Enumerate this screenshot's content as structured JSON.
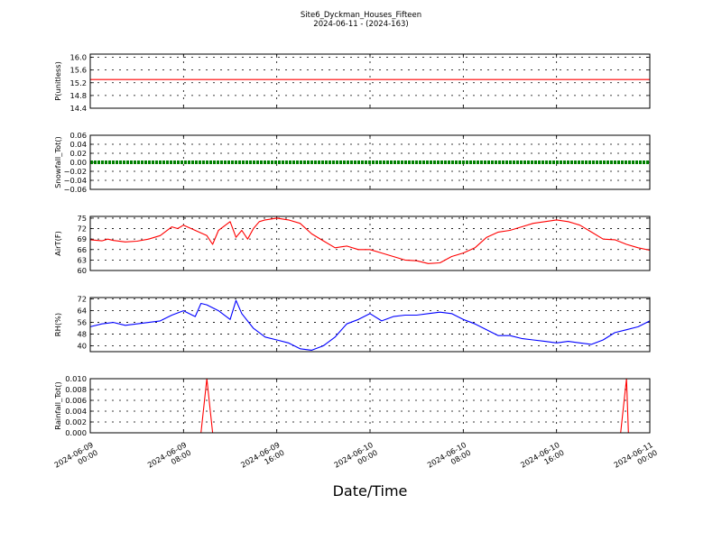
{
  "title": {
    "line1": "Site6_Dyckman_Houses_Fifteen",
    "line2": "2024-06-11 - (2024-163)"
  },
  "x_axis": {
    "label": "Date/Time",
    "ticks": [
      {
        "line1": "2024-06-09",
        "line2": "00:00"
      },
      {
        "line1": "2024-06-09",
        "line2": "08:00"
      },
      {
        "line1": "2024-06-09",
        "line2": "16:00"
      },
      {
        "line1": "2024-06-10",
        "line2": "00:00"
      },
      {
        "line1": "2024-06-10",
        "line2": "08:00"
      },
      {
        "line1": "2024-06-10",
        "line2": "16:00"
      },
      {
        "line1": "2024-06-11",
        "line2": "00:00"
      }
    ]
  },
  "chart_data": [
    {
      "type": "line",
      "ylabel": "P(unitless)",
      "color": "#ff0000",
      "ylim": [
        14.4,
        16.1
      ],
      "yticks": [
        "14.4",
        "14.8",
        "15.2",
        "15.6",
        "16.0"
      ],
      "grid": true,
      "x_range": [
        "2024-06-09 00:00",
        "2024-06-11 00:00"
      ],
      "series": [
        {
          "x": [
            "2024-06-09 00:00",
            "2024-06-11 00:00"
          ],
          "values": [
            15.3,
            15.3
          ]
        }
      ]
    },
    {
      "type": "scatter",
      "ylabel": "Snowfall_Tot()",
      "color": "#008000",
      "ylim": [
        -0.06,
        0.06
      ],
      "yticks": [
        "−0.06",
        "−0.04",
        "−0.02",
        "0.00",
        "0.02",
        "0.04",
        "0.06"
      ],
      "grid": true,
      "x_range": [
        "2024-06-09 00:00",
        "2024-06-11 00:00"
      ],
      "series": [
        {
          "description_of_values": "constant",
          "x": [
            "2024-06-09 00:00",
            "2024-06-11 00:00"
          ],
          "values": [
            0.0,
            0.0
          ]
        }
      ]
    },
    {
      "type": "line",
      "ylabel": "AirT(F)",
      "color": "#ff0000",
      "ylim": [
        60,
        75.5
      ],
      "yticks": [
        "60",
        "63",
        "66",
        "69",
        "72",
        "75"
      ],
      "grid": true,
      "x_range": [
        "2024-06-09 00:00",
        "2024-06-11 00:00"
      ],
      "series": [
        {
          "x": [
            "2024-06-09 00:00",
            "2024-06-09 01:00",
            "2024-06-09 01:30",
            "2024-06-09 02:00",
            "2024-06-09 03:00",
            "2024-06-09 04:00",
            "2024-06-09 05:00",
            "2024-06-09 06:00",
            "2024-06-09 07:00",
            "2024-06-09 07:30",
            "2024-06-09 08:00",
            "2024-06-09 09:00",
            "2024-06-09 10:00",
            "2024-06-09 10:30",
            "2024-06-09 11:00",
            "2024-06-09 12:00",
            "2024-06-09 12:30",
            "2024-06-09 13:00",
            "2024-06-09 13:30",
            "2024-06-09 14:00",
            "2024-06-09 14:30",
            "2024-06-09 15:00",
            "2024-06-09 16:00",
            "2024-06-09 17:00",
            "2024-06-09 18:00",
            "2024-06-09 19:00",
            "2024-06-09 20:00",
            "2024-06-09 21:00",
            "2024-06-09 22:00",
            "2024-06-09 23:00",
            "2024-06-10 00:00",
            "2024-06-10 01:00",
            "2024-06-10 02:00",
            "2024-06-10 03:00",
            "2024-06-10 04:00",
            "2024-06-10 05:00",
            "2024-06-10 06:00",
            "2024-06-10 07:00",
            "2024-06-10 08:00",
            "2024-06-10 09:00",
            "2024-06-10 10:00",
            "2024-06-10 11:00",
            "2024-06-10 12:00",
            "2024-06-10 13:00",
            "2024-06-10 14:00",
            "2024-06-10 15:00",
            "2024-06-10 16:00",
            "2024-06-10 17:00",
            "2024-06-10 18:00",
            "2024-06-10 19:00",
            "2024-06-10 20:00",
            "2024-06-10 21:00",
            "2024-06-10 22:00",
            "2024-06-10 23:00",
            "2024-06-11 00:00"
          ],
          "values": [
            68.8,
            68.5,
            69.0,
            68.6,
            68.2,
            68.4,
            69.0,
            70.0,
            72.5,
            72.0,
            73.0,
            71.5,
            70.0,
            67.5,
            71.5,
            74.0,
            69.5,
            71.5,
            69.0,
            72.0,
            74.0,
            74.5,
            75.0,
            74.5,
            73.5,
            70.5,
            68.5,
            66.5,
            67.0,
            66.0,
            66.0,
            65.0,
            64.0,
            63.0,
            62.8,
            62.0,
            62.2,
            64.0,
            65.0,
            66.5,
            69.5,
            71.0,
            71.5,
            72.5,
            73.5,
            74.0,
            74.5,
            74.0,
            73.0,
            71.0,
            69.0,
            68.8,
            67.5,
            66.5,
            65.8
          ]
        }
      ]
    },
    {
      "type": "line",
      "ylabel": "RH(%)",
      "color": "#0000ff",
      "ylim": [
        36,
        73
      ],
      "yticks": [
        "40",
        "48",
        "56",
        "64",
        "72"
      ],
      "grid": true,
      "x_range": [
        "2024-06-09 00:00",
        "2024-06-11 00:00"
      ],
      "series": [
        {
          "x": [
            "2024-06-09 00:00",
            "2024-06-09 01:00",
            "2024-06-09 02:00",
            "2024-06-09 03:00",
            "2024-06-09 04:00",
            "2024-06-09 05:00",
            "2024-06-09 06:00",
            "2024-06-09 07:00",
            "2024-06-09 08:00",
            "2024-06-09 09:00",
            "2024-06-09 09:30",
            "2024-06-09 10:00",
            "2024-06-09 11:00",
            "2024-06-09 12:00",
            "2024-06-09 12:30",
            "2024-06-09 13:00",
            "2024-06-09 14:00",
            "2024-06-09 15:00",
            "2024-06-09 16:00",
            "2024-06-09 17:00",
            "2024-06-09 18:00",
            "2024-06-09 19:00",
            "2024-06-09 20:00",
            "2024-06-09 21:00",
            "2024-06-09 22:00",
            "2024-06-09 23:00",
            "2024-06-10 00:00",
            "2024-06-10 01:00",
            "2024-06-10 02:00",
            "2024-06-10 03:00",
            "2024-06-10 04:00",
            "2024-06-10 05:00",
            "2024-06-10 06:00",
            "2024-06-10 07:00",
            "2024-06-10 08:00",
            "2024-06-10 09:00",
            "2024-06-10 10:00",
            "2024-06-10 11:00",
            "2024-06-10 12:00",
            "2024-06-10 13:00",
            "2024-06-10 14:00",
            "2024-06-10 15:00",
            "2024-06-10 16:00",
            "2024-06-10 17:00",
            "2024-06-10 18:00",
            "2024-06-10 19:00",
            "2024-06-10 20:00",
            "2024-06-10 21:00",
            "2024-06-10 22:00",
            "2024-06-10 23:00",
            "2024-06-11 00:00"
          ],
          "values": [
            53,
            55,
            56,
            54,
            55,
            56,
            57,
            61,
            64,
            60,
            69,
            68,
            64,
            58,
            71,
            62,
            52,
            46,
            44,
            42,
            38,
            37,
            40,
            46,
            55,
            58,
            62,
            57,
            60,
            61,
            61,
            62,
            63,
            62,
            58,
            55,
            51,
            47,
            47,
            45,
            44,
            43,
            42,
            43,
            42,
            41,
            44,
            49,
            51,
            53,
            57
          ]
        }
      ]
    },
    {
      "type": "line",
      "ylabel": "Rainfall_Tot()",
      "color": "#ff0000",
      "ylim": [
        0,
        0.01
      ],
      "yticks": [
        "0.000",
        "0.002",
        "0.004",
        "0.006",
        "0.008",
        "0.010"
      ],
      "grid": true,
      "x_range": [
        "2024-06-09 00:00",
        "2024-06-11 00:00"
      ],
      "series": [
        {
          "x": [
            "2024-06-09 00:00",
            "2024-06-09 09:30",
            "2024-06-09 10:00",
            "2024-06-09 10:30",
            "2024-06-10 21:30",
            "2024-06-10 22:00",
            "2024-06-10 22:10",
            "2024-06-11 00:00"
          ],
          "values": [
            0,
            0,
            0.01,
            0,
            0,
            0.01,
            0,
            0
          ]
        }
      ]
    }
  ]
}
